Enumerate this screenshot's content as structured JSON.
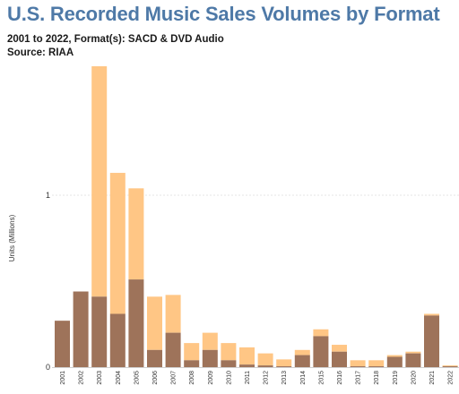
{
  "header": {
    "title": "U.S. Recorded Music Sales Volumes by Format",
    "subtitle": "2001 to 2022, Format(s): SACD & DVD Audio",
    "source": "Source: RIAA"
  },
  "colors": {
    "title": "#4e79a7",
    "DVD Audio": "#ffc685",
    "SACD": "#9e735a",
    "grid": "#e6e6e6"
  },
  "chart_data": {
    "type": "bar",
    "stacked": true,
    "ylabel": "Units (Millions)",
    "xlabel": "",
    "ylim": [
      0,
      1.7
    ],
    "yticks": [
      0,
      1
    ],
    "grid": "dashed horizontal",
    "tick_rotation": -90,
    "categories": [
      "2001",
      "2002",
      "2003",
      "2004",
      "2005",
      "2006",
      "2007",
      "2008",
      "2009",
      "2010",
      "2011",
      "2012",
      "2013",
      "2014",
      "2015",
      "2016",
      "2017",
      "2018",
      "2019",
      "2020",
      "2021",
      "2022"
    ],
    "series": [
      {
        "values": [
          0.27,
          0.44,
          0.41,
          0.31,
          0.51,
          0.1,
          0.2,
          0.04,
          0.1,
          0.04,
          0.015,
          0.01,
          0.005,
          0.07,
          0.18,
          0.09,
          0.005,
          0.005,
          0.06,
          0.08,
          0.3,
          0.005
        ]
      },
      {
        "values": [
          0.0,
          0.0,
          1.34,
          0.82,
          0.53,
          0.31,
          0.22,
          0.1,
          0.1,
          0.1,
          0.1,
          0.07,
          0.04,
          0.03,
          0.04,
          0.04,
          0.035,
          0.035,
          0.01,
          0.01,
          0.01,
          0.005
        ]
      }
    ]
  }
}
